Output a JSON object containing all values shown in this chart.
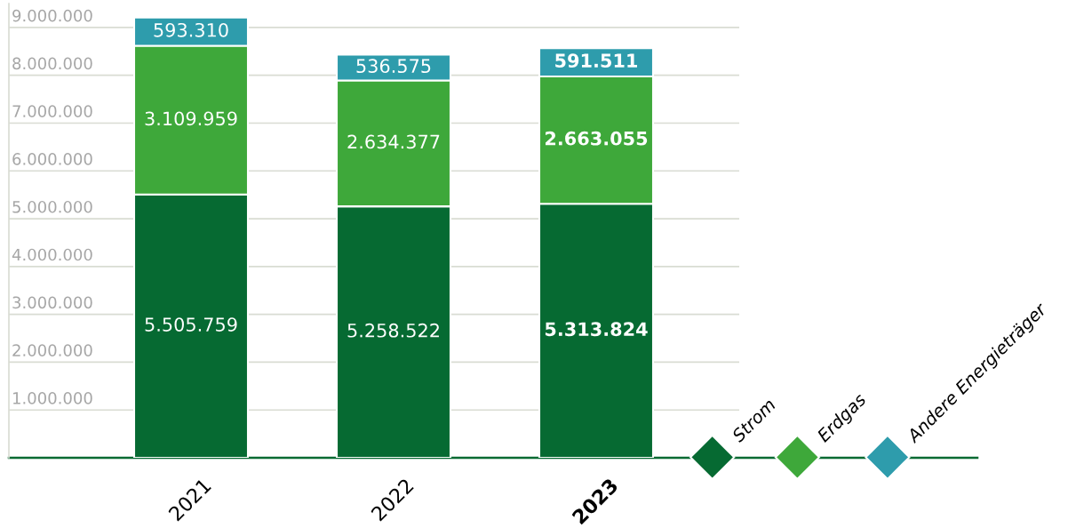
{
  "chart_data": {
    "type": "bar",
    "stacked": true,
    "categories": [
      "2021",
      "2022",
      "2023"
    ],
    "series": [
      {
        "name": "Strom",
        "color": "#066a32",
        "values": [
          5505759,
          5258522,
          5313824
        ],
        "value_labels": [
          "5.505.759",
          "5.258.522",
          "5.313.824"
        ]
      },
      {
        "name": "Erdgas",
        "color": "#3ea83a",
        "values": [
          3109959,
          2634377,
          2663055
        ],
        "value_labels": [
          "3.109.959",
          "2.634.377",
          "2.663.055"
        ]
      },
      {
        "name": "Andere Energieträger",
        "color": "#2e9cac",
        "values": [
          593310,
          536575,
          591511
        ],
        "value_labels": [
          "593.310",
          "536.575",
          "591.511"
        ]
      }
    ],
    "ylim": [
      0,
      9500000
    ],
    "yticks": [
      {
        "value": 1000000,
        "label": "1.000.000"
      },
      {
        "value": 2000000,
        "label": "2.000.000"
      },
      {
        "value": 3000000,
        "label": "3.000.000"
      },
      {
        "value": 4000000,
        "label": "4.000.000"
      },
      {
        "value": 5000000,
        "label": "5.000.000"
      },
      {
        "value": 6000000,
        "label": "6.000.000"
      },
      {
        "value": 7000000,
        "label": "7.000.000"
      },
      {
        "value": 8000000,
        "label": "8.000.000"
      },
      {
        "value": 9000000,
        "label": "9.000.000"
      }
    ],
    "grid": "y",
    "legend": "bottom right"
  }
}
